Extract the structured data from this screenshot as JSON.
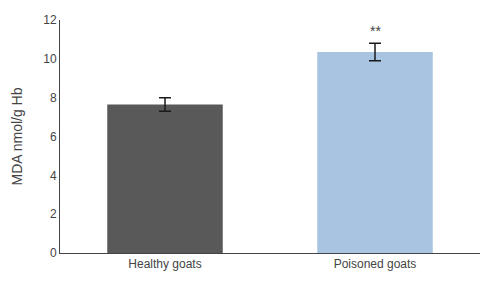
{
  "chart_data": {
    "type": "bar",
    "categories": [
      "Healthy goats",
      "Poisoned goats"
    ],
    "values": [
      7.65,
      10.35
    ],
    "errors": [
      0.35,
      0.45
    ],
    "colors": [
      "#595959",
      "#a8c4e0"
    ],
    "ylabel": "MDA nmol/g Hb",
    "ylim": [
      0,
      12
    ],
    "yticks": [
      0,
      2,
      4,
      6,
      8,
      10,
      12
    ],
    "grid": false,
    "annotations": [
      {
        "category": "Poisoned goats",
        "text": "**"
      }
    ]
  }
}
